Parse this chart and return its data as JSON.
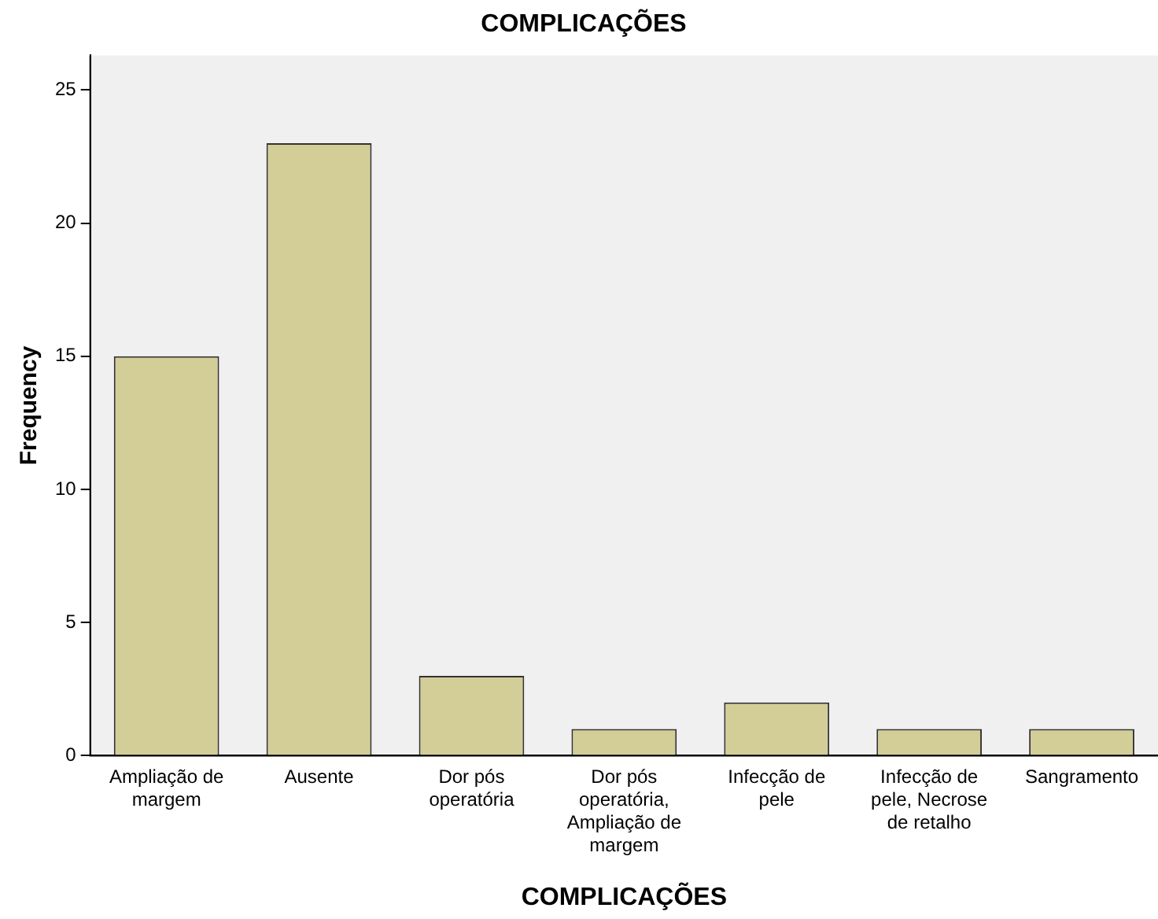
{
  "chart_data": {
    "type": "bar",
    "title": "COMPLICAÇÕES",
    "xlabel": "COMPLICAÇÕES",
    "ylabel": "Frequency",
    "categories": [
      "Ampliação de margem",
      "Ausente",
      "Dor pós operatória",
      "Dor pós operatória, Ampliação de margem",
      "Infecção de pele",
      "Infecção de pele, Necrose de retalho",
      "Sangramento"
    ],
    "values": [
      15,
      23,
      3,
      1,
      2,
      1,
      1
    ],
    "color": "#d3ce97",
    "ylim": [
      0,
      26.3
    ],
    "yticks": [
      0,
      5,
      10,
      15,
      20,
      25
    ],
    "grid": false,
    "legend": false
  }
}
